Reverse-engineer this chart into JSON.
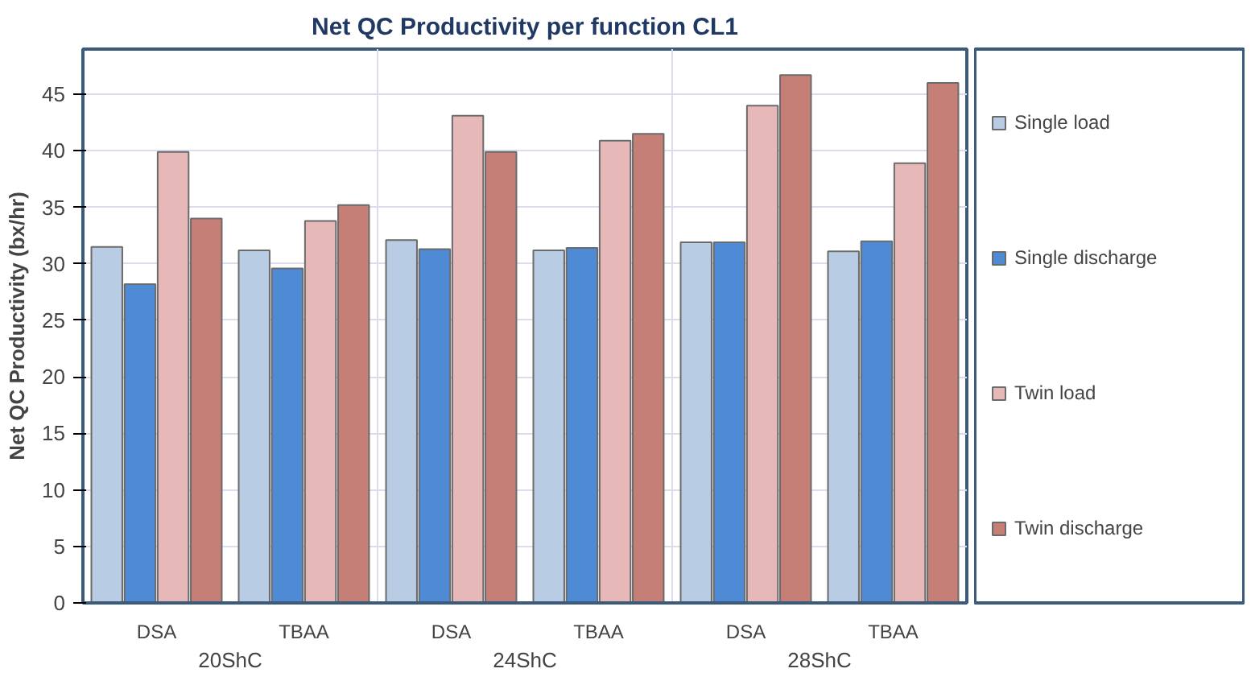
{
  "chart_data": {
    "type": "bar",
    "title": "Net QC Productivity per function CL1",
    "ylabel": "Net QC Productivity (bx/hr)",
    "categories": [
      "DSA",
      "TBAA",
      "DSA",
      "TBAA",
      "DSA",
      "TBAA"
    ],
    "annotations": [
      "20ShC",
      "24ShC",
      "28ShC"
    ],
    "series": [
      {
        "name": "Single load",
        "color": "#b8cce4",
        "values": [
          31.5,
          31.2,
          32.1,
          31.2,
          31.9,
          31.1
        ]
      },
      {
        "name": "Single discharge",
        "color": "#4f8bd4",
        "values": [
          28.2,
          29.6,
          31.3,
          31.4,
          31.9,
          32.0
        ]
      },
      {
        "name": "Twin load",
        "color": "#e6b8b7",
        "values": [
          39.9,
          33.8,
          43.1,
          40.9,
          44.0,
          38.9
        ]
      },
      {
        "name": "Twin discharge",
        "color": "#c67f76",
        "values": [
          34.0,
          35.2,
          39.9,
          41.5,
          46.7,
          46.0
        ]
      }
    ],
    "ylim": [
      0,
      49
    ],
    "yticks": [
      0,
      5,
      10,
      15,
      20,
      25,
      30,
      35,
      40,
      45
    ],
    "grid": true,
    "legend": "right"
  }
}
